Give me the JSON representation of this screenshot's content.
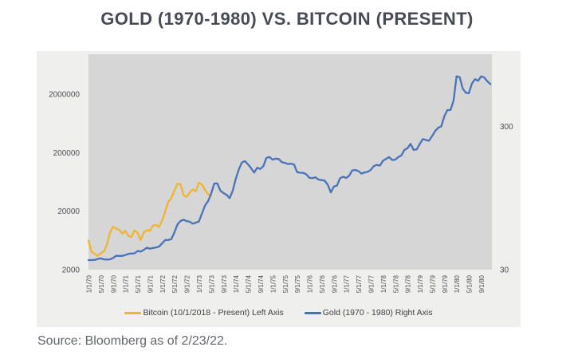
{
  "title": "GOLD (1970-1980) VS. BITCOIN (PRESENT)",
  "source": "Source: Bloomberg as of 2/23/22.",
  "colors": {
    "page_bg": "#FFFFFF",
    "title_text": "#474B55",
    "chart_bg": "#EFEFED",
    "plot_bg": "#D6D6D6",
    "bitcoin_line": "#F0B42F",
    "gold_line": "#4A72B8",
    "axis_text": "#4C4F54",
    "legend_text": "#3E4044",
    "source_text": "#64676D"
  },
  "chart_data": {
    "type": "line",
    "title": "GOLD (1970-1980) VS. BITCOIN (PRESENT)",
    "grid": false,
    "legend_position": "bottom",
    "x_axis": {
      "months_span": 131.5,
      "months_per_tick": 4,
      "tick_labels": [
        "1/1/70",
        "5/1/70",
        "9/1/70",
        "1/1/71",
        "5/1/71",
        "9/1/71",
        "1/1/72",
        "5/1/72",
        "9/1/72",
        "1/1/73",
        "5/1/73",
        "9/1/73",
        "1/1/74",
        "5/1/74",
        "9/1/74",
        "1/1/75",
        "5/1/75",
        "9/1/75",
        "1/1/76",
        "5/1/76",
        "9/1/76",
        "1/1/77",
        "5/1/77",
        "9/1/77",
        "1/1/78",
        "5/1/78",
        "9/1/78",
        "1/1/79",
        "5/1/79",
        "9/1/79",
        "1/1/80",
        "5/1/80",
        "9/1/80"
      ]
    },
    "left_axis": {
      "scale": "log",
      "min": 2000,
      "max": 9620000,
      "ticks": [
        {
          "value": 2000000,
          "label": "2000000"
        },
        {
          "value": 200000,
          "label": "200000"
        },
        {
          "value": 20000,
          "label": "20000"
        },
        {
          "value": 2000,
          "label": "2000"
        }
      ]
    },
    "right_axis": {
      "scale": "log",
      "min": 30,
      "max": 962,
      "ticks": [
        {
          "value": 300,
          "label": "300"
        },
        {
          "value": 30,
          "label": "30"
        }
      ]
    },
    "series": [
      {
        "id": "bitcoin",
        "name": "Bitcoin (10/1/2018 - Present) Left Axis",
        "axis": "left_axis",
        "color": "#F0B42F",
        "monthly_values": [
          6318,
          4017,
          3743,
          3437,
          3816,
          4105,
          5320,
          8574,
          10818,
          10082,
          9630,
          8293,
          9199,
          7569,
          7194,
          9350,
          8543,
          6438,
          8658,
          9461,
          9138,
          11351,
          11655,
          10778,
          13781,
          19625,
          28994,
          33114,
          45137,
          58787,
          57750,
          37333,
          35041,
          41626,
          47166,
          43791,
          61319,
          57006,
          46217,
          38483,
          37988
        ]
      },
      {
        "id": "gold",
        "name": "Gold (1970 - 1980) Right Axis",
        "axis": "right_axis",
        "color": "#4A72B8",
        "monthly_values": [
          35.0,
          35.0,
          35.1,
          35.6,
          36.0,
          35.4,
          35.3,
          35.4,
          36.2,
          37.5,
          37.4,
          37.4,
          37.9,
          38.7,
          38.9,
          39.0,
          40.5,
          40.1,
          41.2,
          42.7,
          42.0,
          42.5,
          42.9,
          43.5,
          45.8,
          48.3,
          48.3,
          49.0,
          54.6,
          62.1,
          65.7,
          67.0,
          65.5,
          64.9,
          62.9,
          63.9,
          65.1,
          74.2,
          84.4,
          90.5,
          102.0,
          120.1,
          120.2,
          106.8,
          103.0,
          100.1,
          94.8,
          106.7,
          129.2,
          150.2,
          168.4,
          172.2,
          163.3,
          154.1,
          143.0,
          154.6,
          151.8,
          158.8,
          181.7,
          183.9,
          176.3,
          179.3,
          178.2,
          169.5,
          167.4,
          164.3,
          165.1,
          163.0,
          144.1,
          142.9,
          142.4,
          139.3,
          131.5,
          131.1,
          132.6,
          127.9,
          126.9,
          125.7,
          117.8,
          104.0,
          114.2,
          116.1,
          130.5,
          133.9,
          131.3,
          136.3,
          148.2,
          149.2,
          146.6,
          140.8,
          143.4,
          144.9,
          149.5,
          158.9,
          162.1,
          160.4,
          173.2,
          178.2,
          183.7,
          175.3,
          176.3,
          183.7,
          188.7,
          206.3,
          212.1,
          227.4,
          206.0,
          207.8,
          227.3,
          245.7,
          242.0,
          239.2,
          257.6,
          279.1,
          294.7,
          300.8,
          355.1,
          391.7,
          392.0,
          455.1,
          675.3,
          665.3,
          553.6,
          517.4,
          513.8,
          600.7,
          644.3,
          627.1,
          673.6,
          661.1,
          623.5,
          594.9
        ]
      }
    ]
  }
}
